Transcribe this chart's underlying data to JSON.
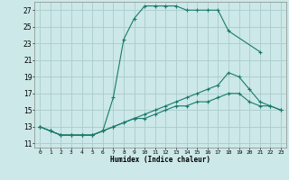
{
  "xlabel": "Humidex (Indice chaleur)",
  "background_color": "#cce8e8",
  "grid_color": "#aacccc",
  "line_color": "#1a7a6a",
  "xlim": [
    -0.5,
    23.5
  ],
  "ylim": [
    10.5,
    28
  ],
  "yticks": [
    11,
    13,
    15,
    17,
    19,
    21,
    23,
    25,
    27
  ],
  "xticks": [
    0,
    1,
    2,
    3,
    4,
    5,
    6,
    7,
    8,
    9,
    10,
    11,
    12,
    13,
    14,
    15,
    16,
    17,
    18,
    19,
    20,
    21,
    22,
    23
  ],
  "series": [
    {
      "x": [
        0,
        1,
        2,
        3,
        4,
        5,
        6,
        7,
        8,
        9,
        10,
        11,
        12,
        13,
        14,
        15,
        16,
        17,
        18,
        21
      ],
      "y": [
        13,
        12.5,
        12,
        12,
        12,
        12,
        12.5,
        16.5,
        23.5,
        26,
        27.5,
        27.5,
        27.5,
        27.5,
        27,
        27,
        27,
        27,
        24.5,
        22
      ]
    },
    {
      "x": [
        0,
        1,
        2,
        3,
        4,
        5,
        6,
        7,
        8,
        9,
        10,
        11,
        12,
        13,
        14,
        15,
        16,
        17,
        18,
        19,
        20,
        21,
        22,
        23
      ],
      "y": [
        13,
        12.5,
        12,
        12,
        12,
        12,
        12.5,
        13,
        13.5,
        14,
        14.5,
        15,
        15.5,
        16,
        16.5,
        17,
        17.5,
        18,
        19.5,
        19,
        17.5,
        16,
        15.5,
        15
      ]
    },
    {
      "x": [
        0,
        1,
        2,
        3,
        4,
        5,
        6,
        7,
        8,
        9,
        10,
        11,
        12,
        13,
        14,
        15,
        16,
        17,
        18,
        19,
        20,
        21,
        22,
        23
      ],
      "y": [
        13,
        12.5,
        12,
        12,
        12,
        12,
        12.5,
        13,
        13.5,
        14,
        14,
        14.5,
        15,
        15.5,
        15.5,
        16,
        16,
        16.5,
        17,
        17,
        16,
        15.5,
        15.5,
        15
      ]
    }
  ]
}
